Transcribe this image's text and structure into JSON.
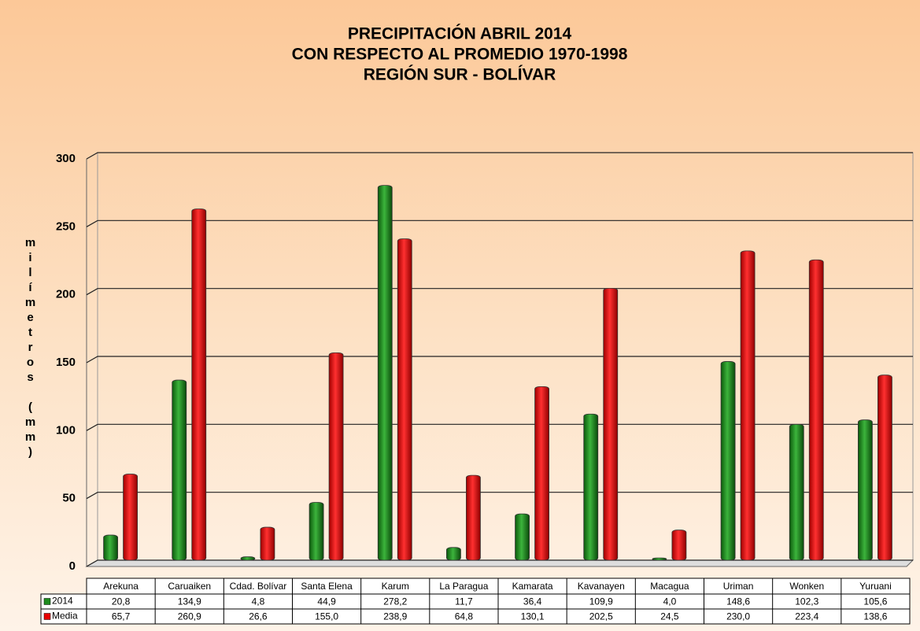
{
  "chart_data": {
    "type": "bar",
    "title": [
      "PRECIPITACIÓN ABRIL 2014",
      "CON RESPECTO AL PROMEDIO 1970-1998",
      "REGIÓN SUR - BOLÍVAR"
    ],
    "y_label": "milímetros (mm)",
    "categories": [
      "Arekuna",
      "Caruaiken",
      "Cdad. Bolívar",
      "Santa Elena",
      "Karum",
      "La Paragua",
      "Kamarata",
      "Kavanayen",
      "Macagua",
      "Uriman",
      "Wonken",
      "Yuruani"
    ],
    "series": [
      {
        "name": "2014",
        "color": "#1e8c1e",
        "values": [
          20.8,
          134.9,
          4.8,
          44.9,
          278.2,
          11.7,
          36.4,
          109.9,
          4.0,
          148.6,
          102.3,
          105.6
        ],
        "value_labels": [
          "20,8",
          "134,9",
          "4,8",
          "44,9",
          "278,2",
          "11,7",
          "36,4",
          "109,9",
          "4,0",
          "148,6",
          "102,3",
          "105,6"
        ]
      },
      {
        "name": "Media",
        "color": "#e80000",
        "values": [
          65.7,
          260.9,
          26.6,
          155.0,
          238.9,
          64.8,
          130.1,
          202.5,
          24.5,
          230.0,
          223.4,
          138.6
        ],
        "value_labels": [
          "65,7",
          "260,9",
          "26,6",
          "155,0",
          "238,9",
          "64,8",
          "130,1",
          "202,5",
          "24,5",
          "230,0",
          "223,4",
          "138,6"
        ]
      }
    ],
    "ylim": [
      0,
      300
    ],
    "yticks": [
      0,
      50,
      100,
      150,
      200,
      250,
      300
    ],
    "grid": true
  }
}
